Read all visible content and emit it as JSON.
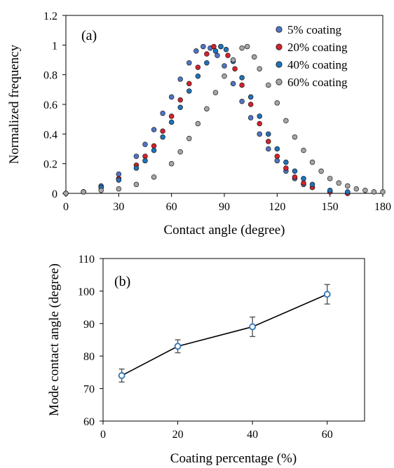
{
  "chart_data": [
    {
      "type": "scatter",
      "panel_label": "(a)",
      "xlabel": "Contact angle (degree)",
      "ylabel": "Normalized frequency",
      "xlim": [
        0,
        180
      ],
      "ylim": [
        0,
        1.2
      ],
      "xticks": [
        "0",
        "30",
        "60",
        "90",
        "120",
        "150",
        "180"
      ],
      "yticks": [
        "0",
        "0.2",
        "0.4",
        "0.6",
        "0.8",
        "1",
        "1.2"
      ],
      "grid": false,
      "legend_position": "top-right",
      "series": [
        {
          "name": "5% coating",
          "color": "#4f76c6",
          "points": [
            [
              0,
              0
            ],
            [
              10,
              0.01
            ],
            [
              20,
              0.05
            ],
            [
              30,
              0.13
            ],
            [
              40,
              0.25
            ],
            [
              45,
              0.33
            ],
            [
              50,
              0.43
            ],
            [
              55,
              0.54
            ],
            [
              60,
              0.65
            ],
            [
              65,
              0.77
            ],
            [
              70,
              0.88
            ],
            [
              74,
              0.96
            ],
            [
              78,
              0.99
            ],
            [
              82,
              0.98
            ],
            [
              86,
              0.93
            ],
            [
              90,
              0.86
            ],
            [
              95,
              0.74
            ],
            [
              100,
              0.62
            ],
            [
              105,
              0.51
            ],
            [
              110,
              0.4
            ],
            [
              115,
              0.3
            ],
            [
              120,
              0.22
            ],
            [
              125,
              0.15
            ],
            [
              130,
              0.1
            ],
            [
              135,
              0.06
            ],
            [
              140,
              0.04
            ],
            [
              150,
              0.01
            ],
            [
              160,
              0
            ]
          ]
        },
        {
          "name": "20% coating",
          "color": "#d5222c",
          "points": [
            [
              0,
              0
            ],
            [
              10,
              0.01
            ],
            [
              20,
              0.04
            ],
            [
              30,
              0.1
            ],
            [
              40,
              0.19
            ],
            [
              45,
              0.25
            ],
            [
              50,
              0.32
            ],
            [
              55,
              0.42
            ],
            [
              60,
              0.52
            ],
            [
              65,
              0.63
            ],
            [
              70,
              0.74
            ],
            [
              75,
              0.85
            ],
            [
              80,
              0.94
            ],
            [
              84,
              0.99
            ],
            [
              88,
              0.99
            ],
            [
              92,
              0.93
            ],
            [
              96,
              0.84
            ],
            [
              100,
              0.73
            ],
            [
              105,
              0.6
            ],
            [
              110,
              0.47
            ],
            [
              115,
              0.35
            ],
            [
              120,
              0.25
            ],
            [
              125,
              0.17
            ],
            [
              130,
              0.11
            ],
            [
              135,
              0.07
            ],
            [
              140,
              0.04
            ],
            [
              150,
              0.01
            ],
            [
              160,
              0
            ]
          ]
        },
        {
          "name": "40% coating",
          "color": "#1f73b8",
          "points": [
            [
              0,
              0
            ],
            [
              10,
              0.01
            ],
            [
              20,
              0.04
            ],
            [
              30,
              0.09
            ],
            [
              40,
              0.17
            ],
            [
              45,
              0.22
            ],
            [
              50,
              0.29
            ],
            [
              55,
              0.38
            ],
            [
              60,
              0.48
            ],
            [
              65,
              0.58
            ],
            [
              70,
              0.69
            ],
            [
              75,
              0.79
            ],
            [
              80,
              0.88
            ],
            [
              85,
              0.96
            ],
            [
              88,
              0.99
            ],
            [
              91,
              0.97
            ],
            [
              95,
              0.89
            ],
            [
              100,
              0.78
            ],
            [
              105,
              0.65
            ],
            [
              110,
              0.52
            ],
            [
              115,
              0.4
            ],
            [
              120,
              0.3
            ],
            [
              125,
              0.21
            ],
            [
              130,
              0.15
            ],
            [
              135,
              0.1
            ],
            [
              140,
              0.06
            ],
            [
              150,
              0.02
            ],
            [
              160,
              0.01
            ]
          ]
        },
        {
          "name": "60% coating",
          "color": "#a6a6a6",
          "points": [
            [
              0,
              0
            ],
            [
              10,
              0.01
            ],
            [
              20,
              0.02
            ],
            [
              30,
              0.03
            ],
            [
              40,
              0.06
            ],
            [
              50,
              0.11
            ],
            [
              60,
              0.2
            ],
            [
              65,
              0.28
            ],
            [
              70,
              0.37
            ],
            [
              75,
              0.47
            ],
            [
              80,
              0.57
            ],
            [
              85,
              0.68
            ],
            [
              90,
              0.79
            ],
            [
              95,
              0.9
            ],
            [
              100,
              0.98
            ],
            [
              103,
              0.99
            ],
            [
              107,
              0.92
            ],
            [
              110,
              0.84
            ],
            [
              115,
              0.73
            ],
            [
              120,
              0.61
            ],
            [
              125,
              0.49
            ],
            [
              130,
              0.38
            ],
            [
              135,
              0.29
            ],
            [
              140,
              0.21
            ],
            [
              145,
              0.15
            ],
            [
              150,
              0.1
            ],
            [
              155,
              0.07
            ],
            [
              160,
              0.05
            ],
            [
              165,
              0.03
            ],
            [
              170,
              0.02
            ],
            [
              175,
              0.01
            ],
            [
              180,
              0.01
            ]
          ]
        }
      ]
    },
    {
      "type": "line",
      "panel_label": "(b)",
      "xlabel": "Coating percentage (%)",
      "ylabel": "Mode contact angle (degree)",
      "xlim": [
        0,
        70
      ],
      "ylim": [
        60,
        110
      ],
      "xticks": [
        "0",
        "20",
        "40",
        "60"
      ],
      "yticks": [
        "60",
        "70",
        "80",
        "90",
        "100",
        "110"
      ],
      "grid": false,
      "x": [
        5,
        20,
        40,
        60
      ],
      "series": [
        {
          "values": [
            74,
            83,
            89,
            99
          ],
          "error": [
            2,
            2,
            3,
            3
          ],
          "color": "#2e75b6"
        }
      ]
    }
  ]
}
